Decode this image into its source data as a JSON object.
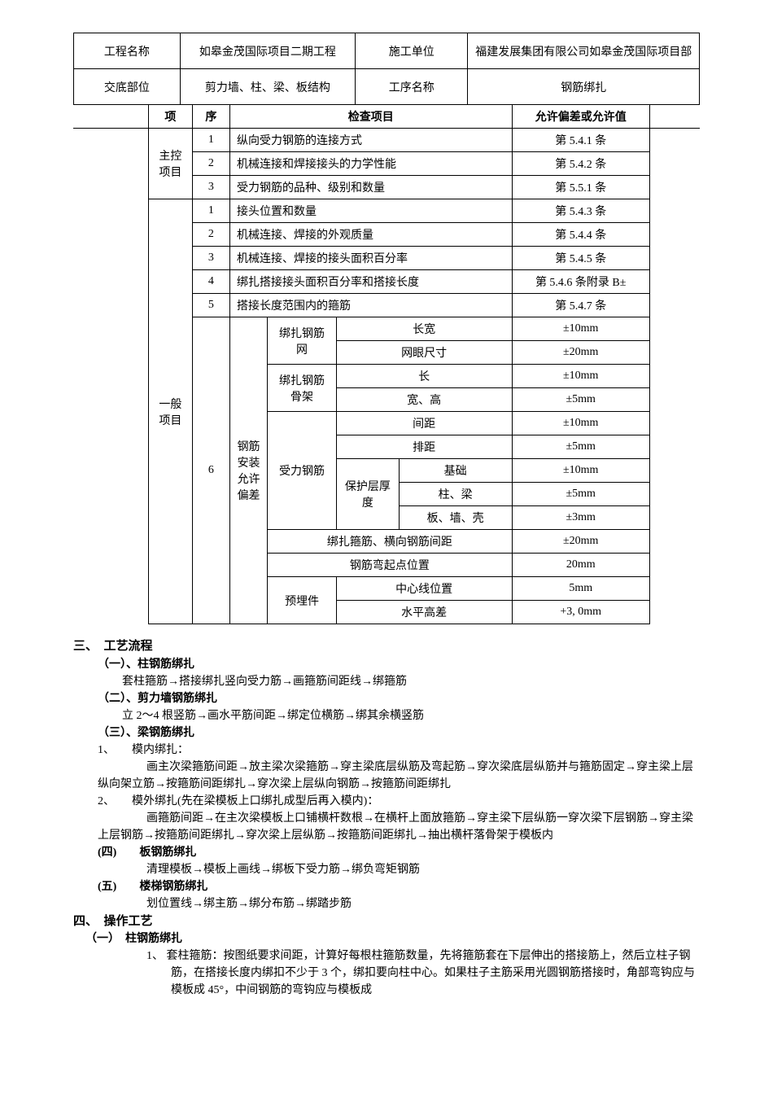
{
  "header": {
    "projectNameLabel": "工程名称",
    "projectNameValue": "如皋金茂国际项目二期工程",
    "constructionUnitLabel": "施工单位",
    "constructionUnitValue": "福建发展集团有限公司如皋金茂国际项目部",
    "disclosurePartLabel": "交底部位",
    "disclosurePartValue": "剪力墙、柱、梁、板结构",
    "processLabel": "工序名称",
    "processValue": "钢筋绑扎"
  },
  "inspection": {
    "colItem": "项",
    "colSeq": "序",
    "colCheckItem": "检查项目",
    "colAllowance": "允许偏差或允许值",
    "mainControl": "主控项目",
    "general": "一般项目",
    "rows": [
      {
        "seq": "1",
        "item": "纵向受力钢筋的连接方式",
        "allow": "第 5.4.1 条"
      },
      {
        "seq": "2",
        "item": "机械连接和焊接接头的力学性能",
        "allow": "第 5.4.2 条"
      },
      {
        "seq": "3",
        "item": "受力钢筋的品种、级别和数量",
        "allow": "第 5.5.1 条"
      },
      {
        "seq": "1",
        "item": "接头位置和数量",
        "allow": "第 5.4.3 条"
      },
      {
        "seq": "2",
        "item": "机械连接、焊接的外观质量",
        "allow": "第 5.4.4 条"
      },
      {
        "seq": "3",
        "item": "机械连接、焊接的接头面积百分率",
        "allow": "第 5.4.5 条"
      },
      {
        "seq": "4",
        "item": "绑扎搭接接头面积百分率和搭接长度",
        "allow": "第 5.4.6 条附录 B±"
      },
      {
        "seq": "5",
        "item": "搭接长度范围内的箍筋",
        "allow": "第 5.4.7 条"
      }
    ],
    "seq6": "6",
    "installVertical": "钢筋安装允许偏差",
    "bindingNet": "绑扎钢筋网",
    "bindingFrame": "绑扎钢筋骨架",
    "forceRebar": "受力钢筋",
    "protectLayer": "保护层厚度",
    "lengthWidth": "长宽",
    "meshSize": "网眼尺寸",
    "length": "长",
    "widthHeight": "宽、高",
    "spacing": "间距",
    "rowSpacing": "排距",
    "foundation": "基础",
    "columnBeam": "柱、梁",
    "wallShell": "板、墙、壳",
    "stirrupSpacing": "绑扎箍筋、横向钢筋间距",
    "bendPosition": "钢筋弯起点位置",
    "embedded": "预埋件",
    "centerLine": "中心线位置",
    "levelDiff": "水平高差",
    "v10mm": "±10mm",
    "v20mm": "±20mm",
    "v5mm": "±5mm",
    "v3mm": "±3mm",
    "v20mm2": "20mm",
    "v5mm2": "5mm",
    "vplus3": "+3, 0mm"
  },
  "content": {
    "sec3": "三、　工艺流程",
    "s31": "（一）、柱钢筋绑扎",
    "s31text": "套柱箍筋→搭接绑扎竖向受力筋→画箍筋间距线→绑箍筋",
    "s32": "（二）、剪力墙钢筋绑扎",
    "s32text": "立 2～4 根竖筋→画水平筋间距→绑定位横筋→绑其余横竖筋",
    "s33": "（三）、梁钢筋绑扎",
    "s33_1": "1、　　模内绑扎：",
    "s33_1text": "画主次梁箍筋间距→放主梁次梁箍筋→穿主梁底层纵筋及弯起筋→穿次梁底层纵筋并与箍筋固定→穿主梁上层纵向架立筋→按箍筋间距绑扎→穿次梁上层纵向钢筋→按箍筋间距绑扎",
    "s33_2": "2、　　模外绑扎(先在梁模板上口绑扎成型后再入模内)：",
    "s33_2text": "画箍筋间距→在主次梁模板上口铺横杆数根→在横杆上面放箍筋→穿主梁下层纵筋一穿次梁下层钢筋→穿主梁上层钢筋→按箍筋间距绑扎→穿次梁上层纵筋→按箍筋间距绑扎→抽出横杆落骨架于模板内",
    "s34": "(四)　　板钢筋绑扎",
    "s34text": "清理模板→模板上画线→绑板下受力筋→绑负弯矩钢筋",
    "s35": "(五)　　楼梯钢筋绑扎",
    "s35text": "划位置线→绑主筋→绑分布筋→绑踏步筋",
    "sec4": "四、　操作工艺",
    "s41": "（一）　柱钢筋绑扎",
    "s41_1": "1、 套柱箍筋：按图纸要求间距，计算好每根柱箍筋数量，先将箍筋套在下层伸出的搭接筋上，然后立柱子钢筋，在搭接长度内绑扣不少于 3 个，绑扣要向柱中心。如果柱子主筋采用光圆钢筋搭接时，角部弯钩应与模板成 45°，中间钢筋的弯钩应与模板成"
  }
}
